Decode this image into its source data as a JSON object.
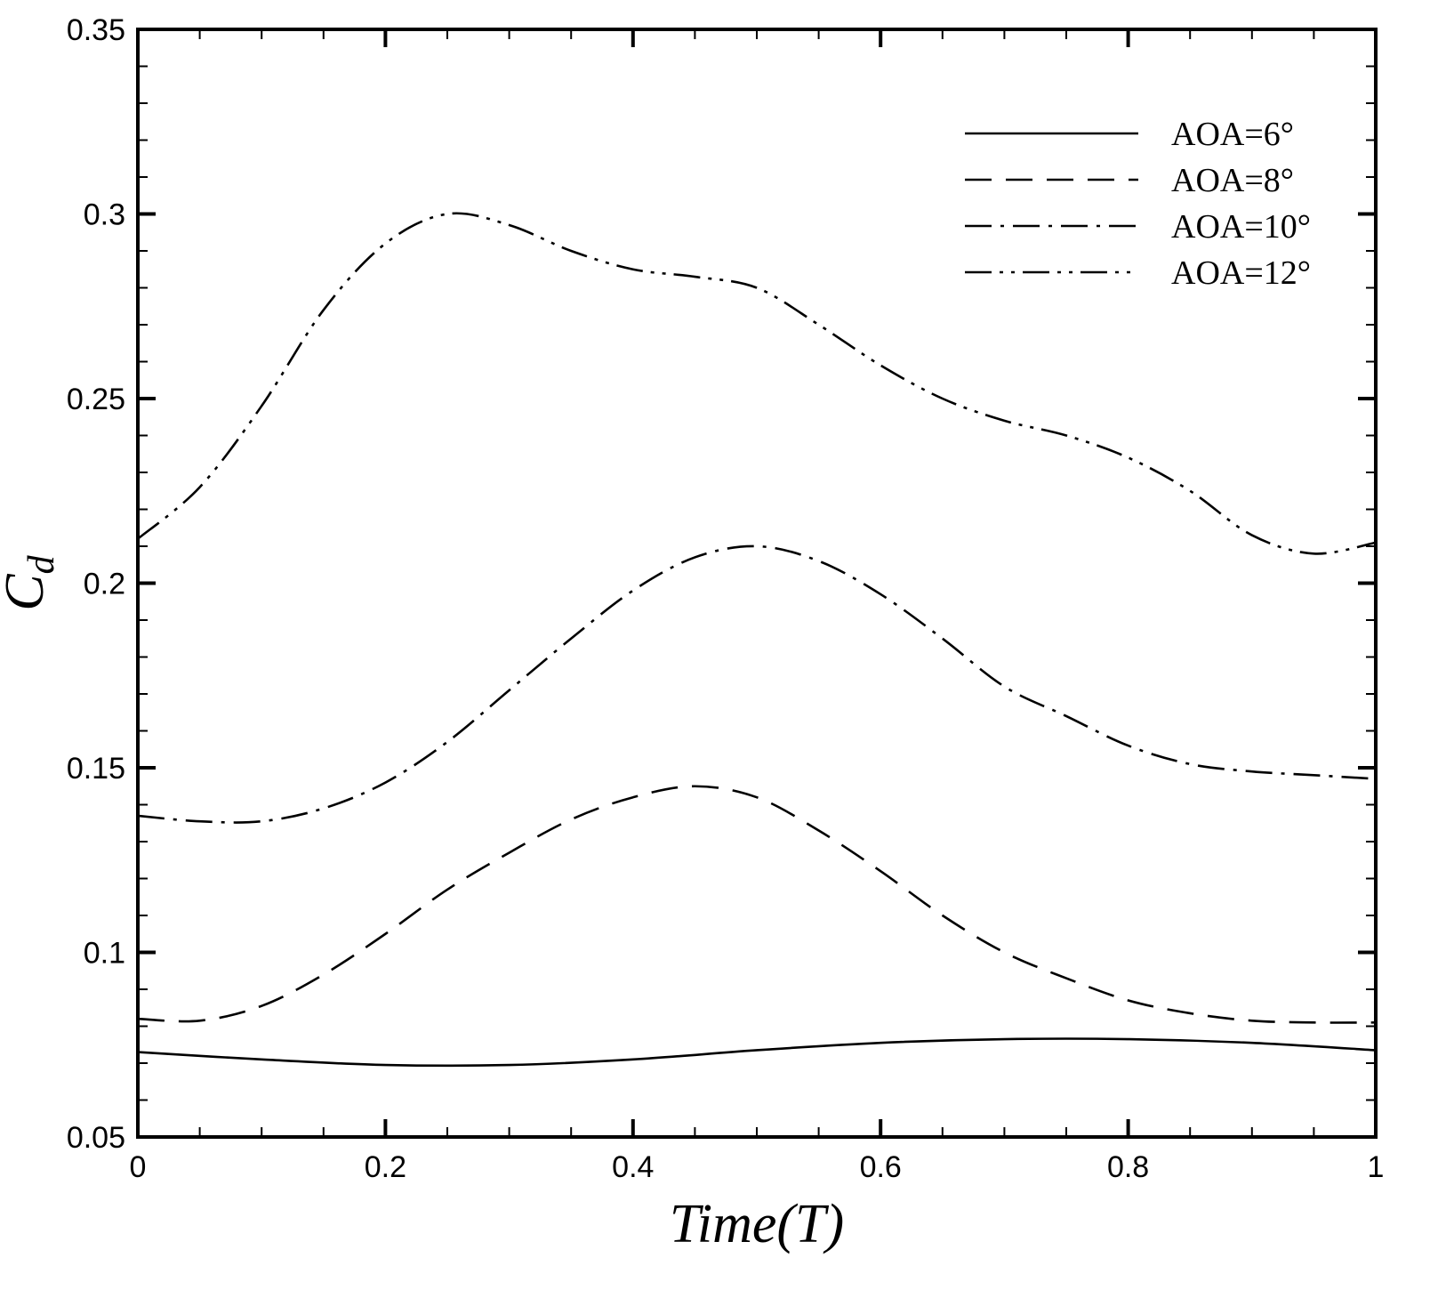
{
  "chart_data": {
    "type": "line",
    "title": "",
    "xlabel": "Time(T)",
    "ylabel_main": "C",
    "ylabel_sub": "d",
    "xlim": [
      0,
      1
    ],
    "ylim": [
      0.05,
      0.35
    ],
    "xticks": [
      0,
      0.2,
      0.4,
      0.6,
      0.8,
      1
    ],
    "xtick_labels": [
      "0",
      "0.2",
      "0.4",
      "0.6",
      "0.8",
      "1"
    ],
    "yticks": [
      0.05,
      0.1,
      0.15,
      0.2,
      0.25,
      0.3,
      0.35
    ],
    "ytick_labels": [
      "0.05",
      "0.1",
      "0.15",
      "0.2",
      "0.25",
      "0.3",
      "0.35"
    ],
    "grid": false,
    "legend_position": "top-right",
    "series": [
      {
        "name": "AOA=6°",
        "dash": "solid",
        "x": [
          0,
          0.1,
          0.2,
          0.3,
          0.4,
          0.5,
          0.6,
          0.7,
          0.8,
          0.9,
          1.0
        ],
        "y": [
          0.073,
          0.071,
          0.0695,
          0.0695,
          0.071,
          0.0735,
          0.0755,
          0.0765,
          0.0765,
          0.0755,
          0.0735
        ]
      },
      {
        "name": "AOA=8°",
        "dash": "dashed",
        "x": [
          0,
          0.05,
          0.1,
          0.15,
          0.2,
          0.25,
          0.3,
          0.35,
          0.4,
          0.45,
          0.5,
          0.55,
          0.6,
          0.65,
          0.7,
          0.75,
          0.8,
          0.85,
          0.9,
          0.95,
          1.0
        ],
        "y": [
          0.082,
          0.0815,
          0.0855,
          0.094,
          0.105,
          0.117,
          0.127,
          0.136,
          0.142,
          0.145,
          0.142,
          0.133,
          0.122,
          0.11,
          0.1,
          0.093,
          0.087,
          0.0835,
          0.0815,
          0.081,
          0.081
        ]
      },
      {
        "name": "AOA=10°",
        "dash": "dash-dot",
        "x": [
          0,
          0.05,
          0.1,
          0.15,
          0.2,
          0.25,
          0.3,
          0.35,
          0.4,
          0.45,
          0.5,
          0.55,
          0.6,
          0.65,
          0.7,
          0.75,
          0.8,
          0.85,
          0.9,
          0.95,
          1.0
        ],
        "y": [
          0.137,
          0.1355,
          0.1355,
          0.139,
          0.146,
          0.157,
          0.171,
          0.185,
          0.198,
          0.207,
          0.21,
          0.206,
          0.197,
          0.185,
          0.172,
          0.164,
          0.156,
          0.151,
          0.149,
          0.148,
          0.147
        ]
      },
      {
        "name": "AOA=12°",
        "dash": "dash-dot-dot",
        "x": [
          0,
          0.05,
          0.1,
          0.15,
          0.2,
          0.25,
          0.3,
          0.35,
          0.4,
          0.45,
          0.5,
          0.55,
          0.6,
          0.65,
          0.7,
          0.75,
          0.8,
          0.85,
          0.9,
          0.95,
          1.0
        ],
        "y": [
          0.212,
          0.226,
          0.248,
          0.274,
          0.292,
          0.3,
          0.297,
          0.29,
          0.285,
          0.283,
          0.28,
          0.27,
          0.259,
          0.25,
          0.244,
          0.24,
          0.234,
          0.225,
          0.213,
          0.208,
          0.211
        ]
      }
    ]
  }
}
